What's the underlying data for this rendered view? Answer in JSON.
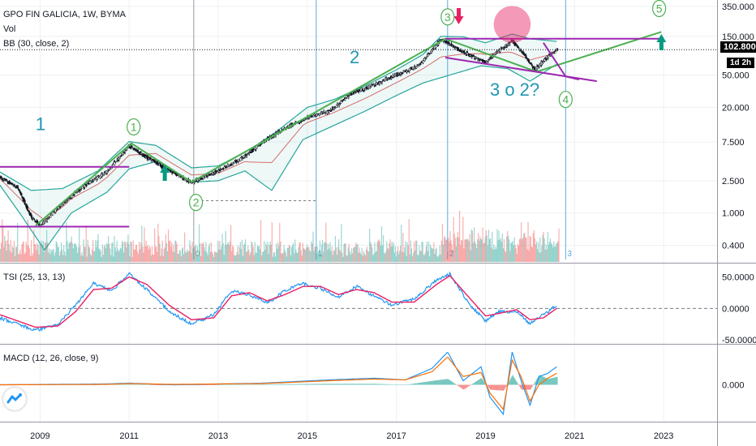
{
  "header": {
    "title": "GPO FIN GALICIA, 1W, BYMA",
    "volume_label": "Vol",
    "bb_label": "BB (30, close, 2)"
  },
  "price": {
    "last": "102.800",
    "timer": "1d 2h"
  },
  "chart_data": [
    {
      "type": "line",
      "pane": "price",
      "title": "GPO FIN GALICIA, 1W, BYMA",
      "y_scale": "log",
      "ylim": [
        0.25,
        420
      ],
      "y_ticks": [
        "350.000",
        "150.000",
        "50.000",
        "20.000",
        "7.500",
        "2.500",
        "1.000",
        "0.400"
      ],
      "y_tick_values": [
        350,
        150,
        50,
        20,
        7.5,
        2.5,
        1,
        0.4
      ],
      "x_ticks": [
        "2009",
        "2011",
        "2013",
        "2015",
        "2017",
        "2019",
        "2021",
        "2023"
      ],
      "x_tick_years": [
        2009,
        2011,
        2013,
        2015,
        2017,
        2019,
        2021,
        2023
      ],
      "xlim": [
        2008.1,
        2024.2
      ],
      "last_value": 102.8,
      "series": [
        {
          "kind": "close",
          "x": [
            2008.1,
            2008.5,
            2008.8,
            2009.0,
            2009.5,
            2010.0,
            2010.5,
            2011.0,
            2011.3,
            2011.7,
            2012.0,
            2012.4,
            2013.0,
            2013.5,
            2014.0,
            2014.5,
            2015.0,
            2015.5,
            2016.0,
            2016.5,
            2017.0,
            2017.5,
            2018.0,
            2018.3,
            2018.7,
            2019.0,
            2019.3,
            2019.6,
            2019.9,
            2020.1,
            2020.3,
            2020.6
          ],
          "y": [
            2.8,
            2.0,
            0.9,
            0.7,
            1.3,
            2.2,
            3.2,
            6.8,
            5.2,
            3.9,
            3.1,
            2.4,
            3.3,
            4.6,
            7.5,
            11,
            15,
            18,
            30,
            38,
            50,
            65,
            138,
            110,
            85,
            72,
            100,
            130,
            85,
            58,
            75,
            102.8
          ]
        },
        {
          "kind": "bb_upper",
          "x": [
            2008.1,
            2008.8,
            2009.5,
            2010.3,
            2011.0,
            2011.6,
            2012.4,
            2013.0,
            2013.7,
            2014.3,
            2015.0,
            2015.6,
            2016.3,
            2017.0,
            2017.6,
            2018.0,
            2018.5,
            2019.0,
            2019.6,
            2020.0,
            2020.6
          ],
          "y": [
            3.2,
            1.9,
            2.0,
            3.3,
            7.6,
            6.8,
            3.6,
            3.8,
            6.0,
            10,
            20,
            25,
            37,
            58,
            90,
            150,
            148,
            125,
            160,
            140,
            130
          ]
        },
        {
          "kind": "bb_lower",
          "x": [
            2008.1,
            2008.6,
            2009.1,
            2009.7,
            2010.5,
            2011.0,
            2011.6,
            2012.4,
            2013.0,
            2013.6,
            2014.2,
            2014.9,
            2015.6,
            2016.3,
            2017.0,
            2017.6,
            2018.2,
            2018.9,
            2019.5,
            2020.0,
            2020.6
          ],
          "y": [
            2.2,
            0.9,
            0.35,
            1.0,
            1.8,
            3.5,
            4.3,
            2.4,
            2.5,
            3.3,
            1.9,
            8.0,
            12,
            18,
            28,
            40,
            50,
            65,
            60,
            42,
            68
          ]
        }
      ],
      "annotations": {
        "wave_labels": [
          {
            "text": "1",
            "x": 2008.9,
            "y": 10.5
          },
          {
            "text": "2",
            "x": 2015.95,
            "y": 70
          },
          {
            "text": "3 o 2?",
            "x": 2019.1,
            "y": 28
          }
        ],
        "circled_labels": [
          {
            "text": "1",
            "x": 2011.1,
            "y": 11.5
          },
          {
            "text": "2",
            "x": 2012.5,
            "y": 1.35
          },
          {
            "text": "3",
            "x": 2018.15,
            "y": 260
          },
          {
            "text": "4",
            "x": 2020.8,
            "y": 25
          },
          {
            "text": "5",
            "x": 2022.9,
            "y": 330
          }
        ],
        "session_markers": [
          "0",
          "1",
          "2",
          "3"
        ],
        "session_marker_years": [
          2012.45,
          2015.2,
          2018.15,
          2020.8
        ]
      }
    },
    {
      "type": "bar",
      "pane": "volume",
      "title": "Vol"
    },
    {
      "type": "line",
      "pane": "tsi",
      "title": "TSI (25, 13, 13)",
      "y_ticks": [
        "50.0000",
        "0.0000",
        "-50.0000"
      ],
      "y_tick_values": [
        50,
        0,
        -50
      ],
      "ylim": [
        -55,
        70
      ],
      "series": [
        {
          "kind": "tsi",
          "x": [
            2008.1,
            2008.5,
            2008.9,
            2009.4,
            2009.8,
            2010.2,
            2010.6,
            2011.0,
            2011.4,
            2011.9,
            2012.4,
            2012.9,
            2013.3,
            2013.7,
            2014.1,
            2014.5,
            2014.9,
            2015.3,
            2015.7,
            2016.1,
            2016.5,
            2016.9,
            2017.4,
            2017.9,
            2018.2,
            2018.6,
            2019.0,
            2019.3,
            2019.7,
            2020.0,
            2020.3,
            2020.6
          ],
          "y": [
            -15,
            -25,
            -35,
            -25,
            5,
            40,
            28,
            55,
            30,
            -5,
            -25,
            -10,
            28,
            22,
            8,
            28,
            40,
            32,
            18,
            35,
            20,
            5,
            15,
            45,
            55,
            10,
            -20,
            -5,
            -5,
            -25,
            -10,
            5
          ]
        },
        {
          "kind": "signal",
          "x": [
            2008.1,
            2008.5,
            2008.9,
            2009.4,
            2009.8,
            2010.2,
            2010.6,
            2011.0,
            2011.4,
            2011.9,
            2012.4,
            2012.9,
            2013.3,
            2013.7,
            2014.1,
            2014.5,
            2014.9,
            2015.3,
            2015.7,
            2016.1,
            2016.5,
            2016.9,
            2017.4,
            2017.9,
            2018.2,
            2018.6,
            2019.0,
            2019.3,
            2019.7,
            2020.0,
            2020.3,
            2020.6
          ],
          "y": [
            -10,
            -20,
            -30,
            -28,
            -5,
            30,
            32,
            50,
            38,
            5,
            -18,
            -15,
            20,
            25,
            12,
            22,
            35,
            35,
            22,
            30,
            25,
            10,
            10,
            38,
            52,
            20,
            -12,
            -8,
            -2,
            -18,
            -15,
            0
          ]
        }
      ]
    },
    {
      "type": "line",
      "pane": "macd",
      "title": "MACD (12, 26, close, 9)",
      "y_ticks": [
        "0.000"
      ],
      "y_tick_values": [
        0
      ],
      "ylim": [
        -45,
        48
      ],
      "series": [
        {
          "kind": "macd",
          "x": [
            2008.1,
            2010.5,
            2011.0,
            2012.0,
            2014.0,
            2015.5,
            2016.5,
            2017.2,
            2017.8,
            2018.15,
            2018.5,
            2018.9,
            2019.1,
            2019.4,
            2019.6,
            2019.8,
            2020.0,
            2020.2,
            2020.4,
            2020.6
          ],
          "y": [
            0,
            1,
            2,
            0,
            2,
            6,
            8,
            6,
            20,
            40,
            5,
            22,
            -15,
            -36,
            40,
            5,
            -25,
            10,
            14,
            22
          ]
        },
        {
          "kind": "signal",
          "x": [
            2008.1,
            2010.5,
            2011.0,
            2012.0,
            2014.0,
            2015.5,
            2016.5,
            2017.2,
            2017.8,
            2018.15,
            2018.5,
            2018.9,
            2019.1,
            2019.4,
            2019.6,
            2019.8,
            2020.0,
            2020.2,
            2020.4,
            2020.6
          ],
          "y": [
            0,
            0.5,
            1.5,
            0.5,
            1.5,
            5,
            7,
            6,
            16,
            34,
            10,
            15,
            -10,
            -30,
            30,
            10,
            -20,
            0,
            8,
            14
          ]
        }
      ]
    }
  ],
  "colors": {
    "background": "#ffffff",
    "grid": "#eef0f3",
    "up": "#26a69a",
    "down": "#ef5350",
    "accent": "#2196f3"
  }
}
